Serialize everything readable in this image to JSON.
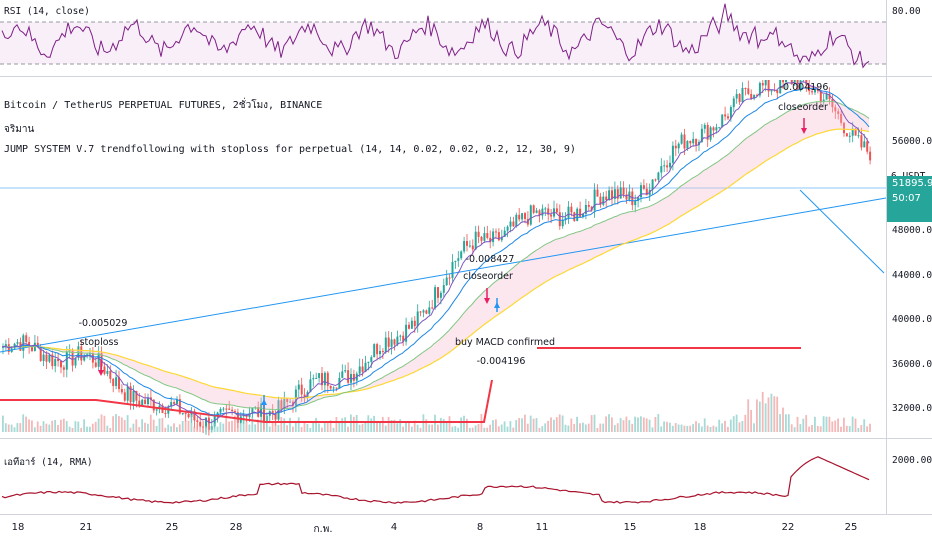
{
  "rsi": {
    "label": "RSI (14, close)",
    "level_label": "80.00"
  },
  "header": {
    "title": "Bitcoin / TetherUS PERPETUAL FUTURES, 2ชั่วโมง, BINANCE",
    "subtitle": "จริมาน",
    "strategy": "JUMP SYSTEM V.7 trendfollowing with stoploss for perpetual (14, 14, 0.02, 0.02, 0.2, 12, 30, 9)"
  },
  "price_axis": {
    "currency": "6 USDT",
    "ticks": [
      "56000.00",
      "48000.00",
      "44000.00",
      "40000.00",
      "36000.00",
      "32000.00"
    ],
    "last_price": "51895.92",
    "countdown": "50:07"
  },
  "atr": {
    "label": "เอทีอาร์ (14, RMA)",
    "tick": "2000.00"
  },
  "time_axis": {
    "ticks": [
      "18",
      "21",
      "25",
      "28",
      "ก.พ.",
      "4",
      "8",
      "11",
      "15",
      "18",
      "22",
      "25"
    ]
  },
  "annotations": {
    "trade1_value": "-0.005029",
    "trade1_label": "stoploss",
    "trade2_value": "-0.008427",
    "trade2_label": "closeorder",
    "trade3_label": "buy MACD confirmed",
    "trade3_value": "-0.004196",
    "trade4_value": "-0.004196",
    "trade4_label": "closeorder"
  },
  "colors": {
    "accent": "#26a69a",
    "rsi_line": "#7e1f86",
    "atr_line": "#a8122c",
    "stop_line": "#f23645",
    "trend_line": "#2196f3",
    "marker": "#e91e63"
  },
  "chart_data": {
    "type": "line",
    "x": [
      "18",
      "21",
      "25",
      "28",
      "ก.พ.",
      "4",
      "8",
      "11",
      "15",
      "18",
      "22",
      "25"
    ],
    "series": [
      {
        "values": [
          37000,
          36200,
          32200,
          31500,
          34000,
          37500,
          45000,
          47000,
          48500,
          54000,
          57500,
          51895.92
        ]
      }
    ],
    "ylim": [
      30000,
      60000
    ],
    "rsi": {
      "ylim": [
        20,
        90
      ],
      "level": 80
    },
    "atr": {
      "ylim": [
        600,
        2800
      ],
      "tick": 2000
    }
  }
}
